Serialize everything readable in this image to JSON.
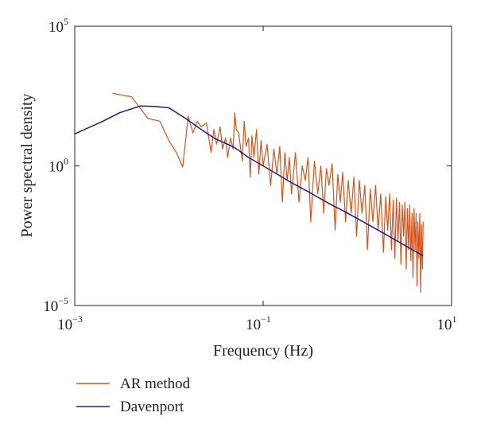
{
  "chart_data": {
    "type": "line",
    "x_scale": "log",
    "y_scale": "log",
    "xlim": [
      0.001,
      10
    ],
    "ylim": [
      1e-05,
      100000
    ],
    "xlabel": "Frequency (Hz)",
    "ylabel": "Power spectral density",
    "x_ticks": [
      {
        "value": 0.001,
        "base": "10",
        "exp": "−3"
      },
      {
        "value": 0.1,
        "base": "10",
        "exp": "−1"
      },
      {
        "value": 10,
        "base": "10",
        "exp": "1"
      }
    ],
    "y_ticks": [
      {
        "value": 100000,
        "base": "10",
        "exp": "5"
      },
      {
        "value": 1,
        "base": "10",
        "exp": "0"
      },
      {
        "value": 1e-05,
        "base": "10",
        "exp": "−5"
      }
    ],
    "grid": false,
    "legend_position": "below-left",
    "series": [
      {
        "name": "AR method",
        "color": "#d95319",
        "x": [
          0.0025,
          0.004,
          0.006,
          0.008,
          0.01,
          0.012,
          0.014,
          0.016,
          0.018,
          0.02,
          0.022,
          0.025,
          0.028,
          0.03,
          0.032,
          0.035,
          0.037,
          0.04,
          0.042,
          0.045,
          0.048,
          0.05,
          0.052,
          0.055,
          0.06,
          0.063,
          0.066,
          0.07,
          0.073,
          0.076,
          0.08,
          0.085,
          0.09,
          0.095,
          0.1,
          0.11,
          0.12,
          0.13,
          0.14,
          0.15,
          0.16,
          0.17,
          0.18,
          0.19,
          0.2,
          0.22,
          0.24,
          0.26,
          0.28,
          0.3,
          0.32,
          0.35,
          0.38,
          0.41,
          0.44,
          0.47,
          0.5,
          0.54,
          0.58,
          0.62,
          0.66,
          0.7,
          0.75,
          0.8,
          0.86,
          0.92,
          0.98,
          1.05,
          1.12,
          1.2,
          1.28,
          1.37,
          1.46,
          1.56,
          1.66,
          1.77,
          1.89,
          2.0,
          2.1,
          2.2,
          2.3,
          2.4,
          2.5,
          2.6,
          2.7,
          2.8,
          2.9,
          3.0,
          3.1,
          3.2,
          3.3,
          3.4,
          3.5,
          3.6,
          3.7,
          3.8,
          3.9,
          4.0,
          4.1,
          4.2,
          4.3,
          4.4,
          4.5,
          4.6,
          4.7,
          4.8,
          4.9,
          5.0
        ],
        "y": [
          400,
          300,
          50,
          40,
          8,
          3,
          0.9,
          60,
          15,
          40,
          25,
          35,
          3,
          20,
          6,
          25,
          4,
          10,
          2,
          10,
          4,
          80,
          20,
          15,
          1.5,
          40,
          5,
          10,
          0.4,
          12,
          2,
          20,
          0.5,
          8,
          1,
          6,
          0.2,
          4,
          0.5,
          5,
          0.05,
          3,
          0.3,
          2,
          0.1,
          3,
          0.05,
          1,
          0.3,
          2,
          0.01,
          1.5,
          0.1,
          1,
          0.02,
          0.8,
          0.2,
          1.2,
          0.005,
          0.5,
          0.05,
          0.6,
          0.01,
          0.3,
          0.02,
          0.4,
          0.003,
          0.3,
          0.02,
          0.2,
          0.001,
          0.15,
          0.01,
          0.2,
          0.005,
          0.1,
          0.0008,
          0.08,
          0.005,
          0.1,
          0.001,
          0.06,
          0.0005,
          0.07,
          0.002,
          0.05,
          0.0003,
          0.04,
          0.003,
          0.05,
          0.0002,
          0.03,
          0.001,
          0.04,
          0.0004,
          0.02,
          0.0001,
          0.03,
          0.001,
          0.02,
          5e-05,
          0.01,
          0.0005,
          0.02,
          3e-05,
          0.008,
          0.0002,
          0.01
        ]
      },
      {
        "name": "Davenport",
        "color": "#1f1a8c",
        "x": [
          0.001,
          0.002,
          0.003,
          0.005,
          0.007,
          0.01,
          0.015,
          0.02,
          0.03,
          0.05,
          0.07,
          0.1,
          0.2,
          0.3,
          0.5,
          0.7,
          1,
          2,
          3,
          5
        ],
        "y": [
          14,
          40,
          80,
          140,
          135,
          120,
          50,
          25,
          10,
          4.5,
          2,
          1,
          0.25,
          0.12,
          0.045,
          0.025,
          0.013,
          0.0035,
          0.0016,
          0.0006
        ]
      }
    ]
  }
}
